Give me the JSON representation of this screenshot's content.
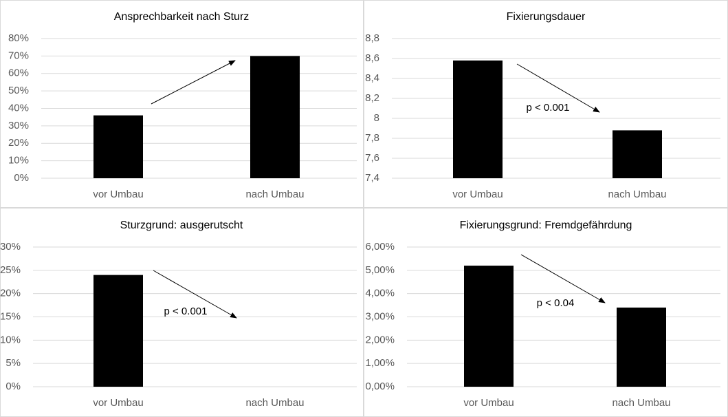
{
  "chart_data": [
    {
      "type": "bar",
      "title": "Ansprechbarkeit  nach Sturz",
      "categories": [
        "vor Umbau",
        "nach Umbau"
      ],
      "values": [
        36,
        70
      ],
      "color": "#000000",
      "grid": true,
      "ylim": [
        0,
        80
      ],
      "yticks": [
        {
          "value": 0,
          "label": "0%"
        },
        {
          "value": 10,
          "label": "10%"
        },
        {
          "value": 20,
          "label": "20%"
        },
        {
          "value": 30,
          "label": "30%"
        },
        {
          "value": 40,
          "label": "40%"
        },
        {
          "value": 50,
          "label": "50%"
        },
        {
          "value": 60,
          "label": "60%"
        },
        {
          "value": 70,
          "label": "70%"
        },
        {
          "value": 80,
          "label": "80%"
        }
      ]
    },
    {
      "type": "bar",
      "title": "Fixierungsdauer",
      "categories": [
        "vor Umbau",
        "nach Umbau"
      ],
      "values": [
        8.58,
        7.88
      ],
      "color": "#000000",
      "grid": true,
      "annotation": "p < 0.001",
      "ylim": [
        7.4,
        8.8
      ],
      "yticks": [
        {
          "value": 7.4,
          "label": "7,4"
        },
        {
          "value": 7.6,
          "label": "7,6"
        },
        {
          "value": 7.8,
          "label": "7,8"
        },
        8,
        {
          "value": 8.2,
          "label": "8,2"
        },
        {
          "value": 8.4,
          "label": "8,4"
        },
        {
          "value": 8.6,
          "label": "8,6"
        },
        {
          "value": 8.8,
          "label": "8,8"
        }
      ]
    },
    {
      "type": "bar",
      "title": "Sturzgrund: ausgerutscht",
      "categories": [
        "vor Umbau",
        "nach Umbau"
      ],
      "values": [
        24,
        0
      ],
      "color": "#000000",
      "grid": true,
      "annotation": "p < 0.001",
      "ylim": [
        0,
        30
      ],
      "yticks": [
        {
          "value": 0,
          "label": "0%"
        },
        {
          "value": 5,
          "label": "5%"
        },
        {
          "value": 10,
          "label": "10%"
        },
        {
          "value": 15,
          "label": "15%"
        },
        {
          "value": 20,
          "label": "20%"
        },
        {
          "value": 25,
          "label": "25%"
        },
        {
          "value": 30,
          "label": "30%"
        }
      ]
    },
    {
      "type": "bar",
      "title": "Fixierungsgrund: Fremdgefährdung",
      "categories": [
        "vor Umbau",
        "nach Umbau"
      ],
      "values": [
        5.2,
        3.4
      ],
      "color": "#000000",
      "grid": true,
      "annotation": "p < 0.04",
      "ylim": [
        0,
        6
      ],
      "yticks": [
        {
          "value": 0,
          "label": "0,00%"
        },
        {
          "value": 1,
          "label": "1,00%"
        },
        {
          "value": 2,
          "label": "2,00%"
        },
        {
          "value": 3,
          "label": "3,00%"
        },
        {
          "value": 4,
          "label": "4,00%"
        },
        {
          "value": 5,
          "label": "5,00%"
        },
        {
          "value": 6,
          "label": "6,00%"
        }
      ]
    }
  ]
}
